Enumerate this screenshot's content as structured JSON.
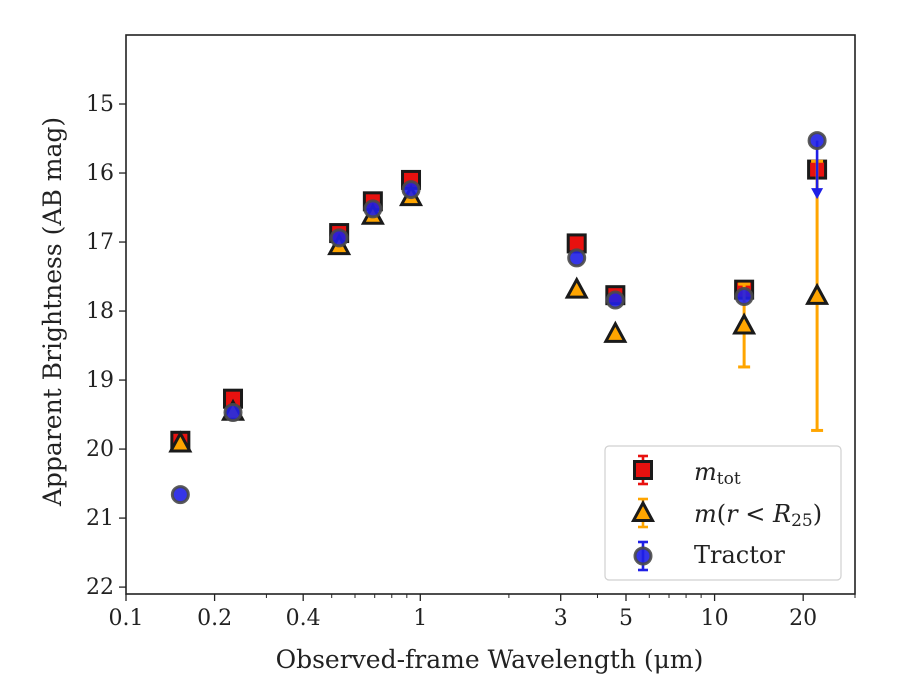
{
  "chart_data": {
    "type": "scatter",
    "title": "",
    "xlabel": "Observed-frame Wavelength (μm)",
    "ylabel": "Apparent Brightness (AB mag)",
    "xscale": "log",
    "xlim": [
      0.1,
      30
    ],
    "ylim": [
      22.1,
      14.0
    ],
    "y_inverted": true,
    "grid": false,
    "legend_position": "bottom-right",
    "xticks": [
      0.1,
      0.2,
      0.4,
      1,
      3,
      5,
      10,
      20
    ],
    "xtick_labels": [
      "0.1",
      "0.2",
      "0.4",
      "1",
      "3",
      "5",
      "10",
      "20"
    ],
    "yticks": [
      15,
      16,
      17,
      18,
      19,
      20,
      21,
      22
    ],
    "ytick_labels": [
      "15",
      "16",
      "17",
      "18",
      "19",
      "20",
      "21",
      "22"
    ],
    "series": [
      {
        "name": "m_tot",
        "legend_label": "mtot",
        "marker": "square",
        "color": "#e8110f",
        "edge": "#1a1a1a",
        "points": [
          {
            "x": 0.153,
            "y": 19.88
          },
          {
            "x": 0.231,
            "y": 19.27
          },
          {
            "x": 0.53,
            "y": 16.87
          },
          {
            "x": 0.69,
            "y": 16.41
          },
          {
            "x": 0.93,
            "y": 16.1
          },
          {
            "x": 3.4,
            "y": 17.02
          },
          {
            "x": 4.6,
            "y": 17.77
          },
          {
            "x": 12.6,
            "y": 17.69
          },
          {
            "x": 22.3,
            "y": 15.95,
            "err_lo": 0.12,
            "err_hi": 0.12
          }
        ]
      },
      {
        "name": "m(r<R25)",
        "legend_label": "m(r < R25)",
        "marker": "triangle",
        "color": "#ffa500",
        "edge": "#1a1a1a",
        "points": [
          {
            "x": 0.153,
            "y": 19.92
          },
          {
            "x": 0.231,
            "y": 19.46
          },
          {
            "x": 0.53,
            "y": 17.06
          },
          {
            "x": 0.69,
            "y": 16.62
          },
          {
            "x": 0.93,
            "y": 16.35
          },
          {
            "x": 3.4,
            "y": 17.69
          },
          {
            "x": 4.6,
            "y": 18.33
          },
          {
            "x": 12.6,
            "y": 18.21,
            "err_lo": 0.6,
            "err_hi": 0.6
          },
          {
            "x": 22.3,
            "y": 17.78,
            "err_lo": 1.95,
            "err_hi": 1.95
          }
        ]
      },
      {
        "name": "Tractor",
        "legend_label": "Tractor",
        "marker": "circle",
        "color": "#1f1fe6",
        "edge": "#4a4a4a",
        "points": [
          {
            "x": 0.153,
            "y": 20.66
          },
          {
            "x": 0.231,
            "y": 19.47
          },
          {
            "x": 0.53,
            "y": 16.94
          },
          {
            "x": 0.69,
            "y": 16.52
          },
          {
            "x": 0.93,
            "y": 16.24
          },
          {
            "x": 3.4,
            "y": 17.23
          },
          {
            "x": 4.6,
            "y": 17.84
          },
          {
            "x": 12.6,
            "y": 17.79
          },
          {
            "x": 22.3,
            "y": 15.53,
            "upper_limit": true,
            "arrow_to": 16.35
          }
        ]
      }
    ]
  }
}
